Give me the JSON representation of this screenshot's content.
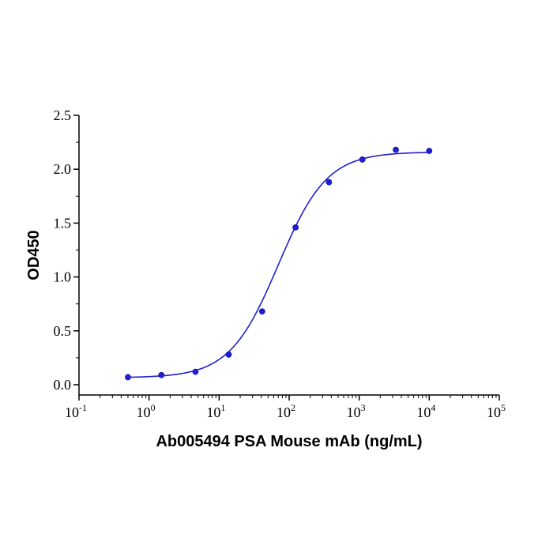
{
  "chart_data": {
    "type": "scatter",
    "title": "",
    "xlabel": "Ab005494 PSA Mouse mAb (ng/mL)",
    "ylabel": "OD450",
    "x_scale": "log",
    "xlim": [
      0.1,
      100000
    ],
    "ylim": [
      0,
      2.5
    ],
    "x_ticks": [
      {
        "base": "10",
        "exp": "-1",
        "value": 0.1
      },
      {
        "base": "10",
        "exp": "0",
        "value": 1
      },
      {
        "base": "10",
        "exp": "1",
        "value": 10
      },
      {
        "base": "10",
        "exp": "2",
        "value": 100
      },
      {
        "base": "10",
        "exp": "3",
        "value": 1000
      },
      {
        "base": "10",
        "exp": "4",
        "value": 10000
      },
      {
        "base": "10",
        "exp": "5",
        "value": 100000
      }
    ],
    "y_ticks": [
      {
        "label": "0.0",
        "value": 0
      },
      {
        "label": "0.5",
        "value": 0.5
      },
      {
        "label": "1.0",
        "value": 1.0
      },
      {
        "label": "1.5",
        "value": 1.5
      },
      {
        "label": "2.0",
        "value": 2.0
      },
      {
        "label": "2.5",
        "value": 2.5
      }
    ],
    "grid": false,
    "legend": "none",
    "color": "#1f1fcf",
    "series": [
      {
        "x": [
          0.5,
          1.5,
          4.6,
          13.7,
          41.2,
          123.5,
          370.4,
          1111.1,
          3333.3,
          10000
        ],
        "y": [
          0.07,
          0.09,
          0.12,
          0.28,
          0.68,
          1.46,
          1.88,
          2.09,
          2.18,
          2.17
        ]
      }
    ],
    "fit": {
      "model": "4PL",
      "bottom": 0.065,
      "top": 2.16,
      "ec50": 70,
      "hill": 1.25
    }
  }
}
